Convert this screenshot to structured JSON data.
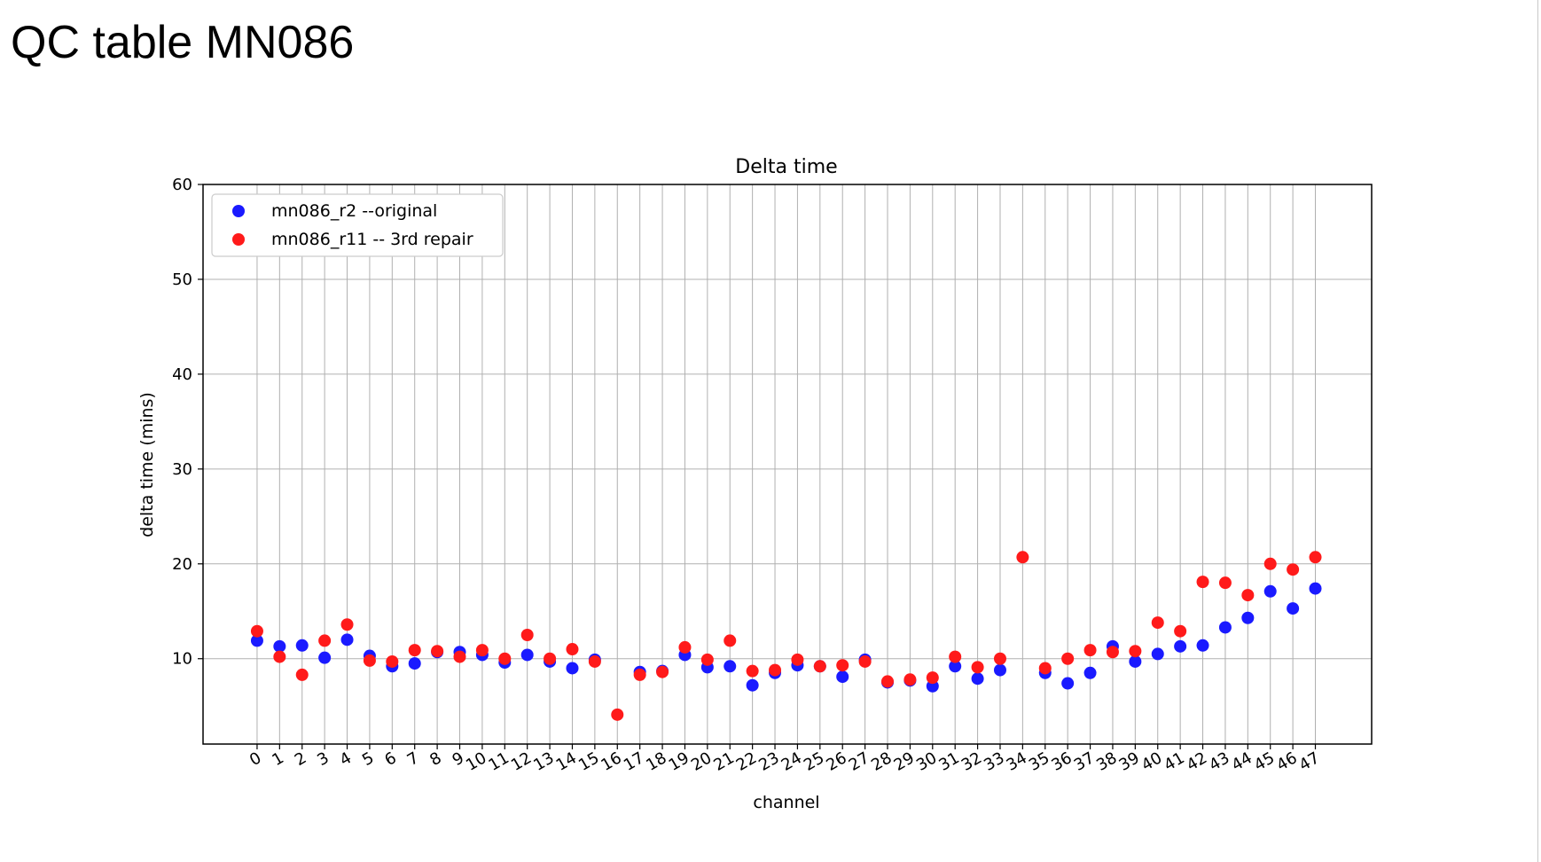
{
  "page": {
    "title": "QC table MN086"
  },
  "chart_data": {
    "type": "scatter",
    "title": "Delta time",
    "xlabel": "channel",
    "ylabel": "delta time (mins)",
    "x": [
      0,
      1,
      2,
      3,
      4,
      5,
      6,
      7,
      8,
      9,
      10,
      11,
      12,
      13,
      14,
      15,
      16,
      17,
      18,
      19,
      20,
      21,
      22,
      23,
      24,
      25,
      26,
      27,
      28,
      29,
      30,
      31,
      32,
      33,
      34,
      35,
      36,
      37,
      38,
      39,
      40,
      41,
      42,
      43,
      44,
      45,
      46,
      47
    ],
    "x_tick_labels": [
      "0",
      "1",
      "2",
      "3",
      "4",
      "5",
      "6",
      "7",
      "8",
      "9",
      "10",
      "11",
      "12",
      "13",
      "14",
      "15",
      "16",
      "17",
      "18",
      "19",
      "20",
      "21",
      "22",
      "23",
      "24",
      "25",
      "26",
      "27",
      "28",
      "29",
      "30",
      "31",
      "32",
      "33",
      "34",
      "35",
      "36",
      "37",
      "38",
      "39",
      "40",
      "41",
      "42",
      "43",
      "44",
      "45",
      "46",
      "47"
    ],
    "xlim": [
      -2.4,
      49.5
    ],
    "ylim": [
      1,
      60
    ],
    "y_ticks": [
      10,
      20,
      30,
      40,
      50,
      60
    ],
    "y_tick_labels": [
      "10",
      "20",
      "30",
      "40",
      "50",
      "60"
    ],
    "grid": true,
    "legend_position": "upper-left",
    "series": [
      {
        "name": "mn086_r2 --original",
        "color": "#1a1aff",
        "points": [
          [
            0,
            11.9
          ],
          [
            1,
            11.3
          ],
          [
            2,
            11.4
          ],
          [
            3,
            10.1
          ],
          [
            4,
            12.0
          ],
          [
            5,
            10.3
          ],
          [
            6,
            9.2
          ],
          [
            7,
            9.5
          ],
          [
            8,
            10.7
          ],
          [
            9,
            10.7
          ],
          [
            10,
            10.4
          ],
          [
            11,
            9.6
          ],
          [
            12,
            10.4
          ],
          [
            13,
            9.7
          ],
          [
            14,
            9.0
          ],
          [
            15,
            9.9
          ],
          [
            17,
            8.6
          ],
          [
            18,
            8.7
          ],
          [
            19,
            10.4
          ],
          [
            20,
            9.1
          ],
          [
            21,
            9.2
          ],
          [
            22,
            7.2
          ],
          [
            23,
            8.5
          ],
          [
            24,
            9.3
          ],
          [
            25,
            9.2
          ],
          [
            26,
            8.1
          ],
          [
            27,
            9.9
          ],
          [
            28,
            7.5
          ],
          [
            29,
            7.7
          ],
          [
            30,
            7.1
          ],
          [
            31,
            9.2
          ],
          [
            32,
            7.9
          ],
          [
            33,
            8.8
          ],
          [
            35,
            8.5
          ],
          [
            36,
            7.4
          ],
          [
            37,
            8.5
          ],
          [
            38,
            11.3
          ],
          [
            39,
            9.7
          ],
          [
            40,
            10.5
          ],
          [
            41,
            11.3
          ],
          [
            42,
            11.4
          ],
          [
            43,
            13.3
          ],
          [
            44,
            14.3
          ],
          [
            45,
            17.1
          ],
          [
            46,
            15.3
          ],
          [
            47,
            17.4
          ]
        ]
      },
      {
        "name": "mn086_r11 -- 3rd repair",
        "color": "#ff1a1a",
        "points": [
          [
            0,
            12.9
          ],
          [
            1,
            10.2
          ],
          [
            2,
            8.3
          ],
          [
            3,
            11.9
          ],
          [
            4,
            13.6
          ],
          [
            5,
            9.8
          ],
          [
            6,
            9.7
          ],
          [
            7,
            10.9
          ],
          [
            8,
            10.8
          ],
          [
            9,
            10.2
          ],
          [
            10,
            10.9
          ],
          [
            11,
            10.0
          ],
          [
            12,
            12.5
          ],
          [
            13,
            10.0
          ],
          [
            14,
            11.0
          ],
          [
            15,
            9.7
          ],
          [
            16,
            4.1
          ],
          [
            17,
            8.3
          ],
          [
            18,
            8.6
          ],
          [
            19,
            11.2
          ],
          [
            20,
            9.9
          ],
          [
            21,
            11.9
          ],
          [
            22,
            8.7
          ],
          [
            23,
            8.8
          ],
          [
            24,
            9.9
          ],
          [
            25,
            9.2
          ],
          [
            26,
            9.3
          ],
          [
            27,
            9.7
          ],
          [
            28,
            7.6
          ],
          [
            29,
            7.8
          ],
          [
            30,
            8.0
          ],
          [
            31,
            10.2
          ],
          [
            32,
            9.1
          ],
          [
            33,
            10.0
          ],
          [
            34,
            20.7
          ],
          [
            35,
            9.0
          ],
          [
            36,
            10.0
          ],
          [
            37,
            10.9
          ],
          [
            38,
            10.7
          ],
          [
            39,
            10.8
          ],
          [
            40,
            13.8
          ],
          [
            41,
            12.9
          ],
          [
            42,
            18.1
          ],
          [
            43,
            18.0
          ],
          [
            44,
            16.7
          ],
          [
            45,
            20.0
          ],
          [
            46,
            19.4
          ],
          [
            47,
            20.7
          ]
        ]
      }
    ]
  }
}
